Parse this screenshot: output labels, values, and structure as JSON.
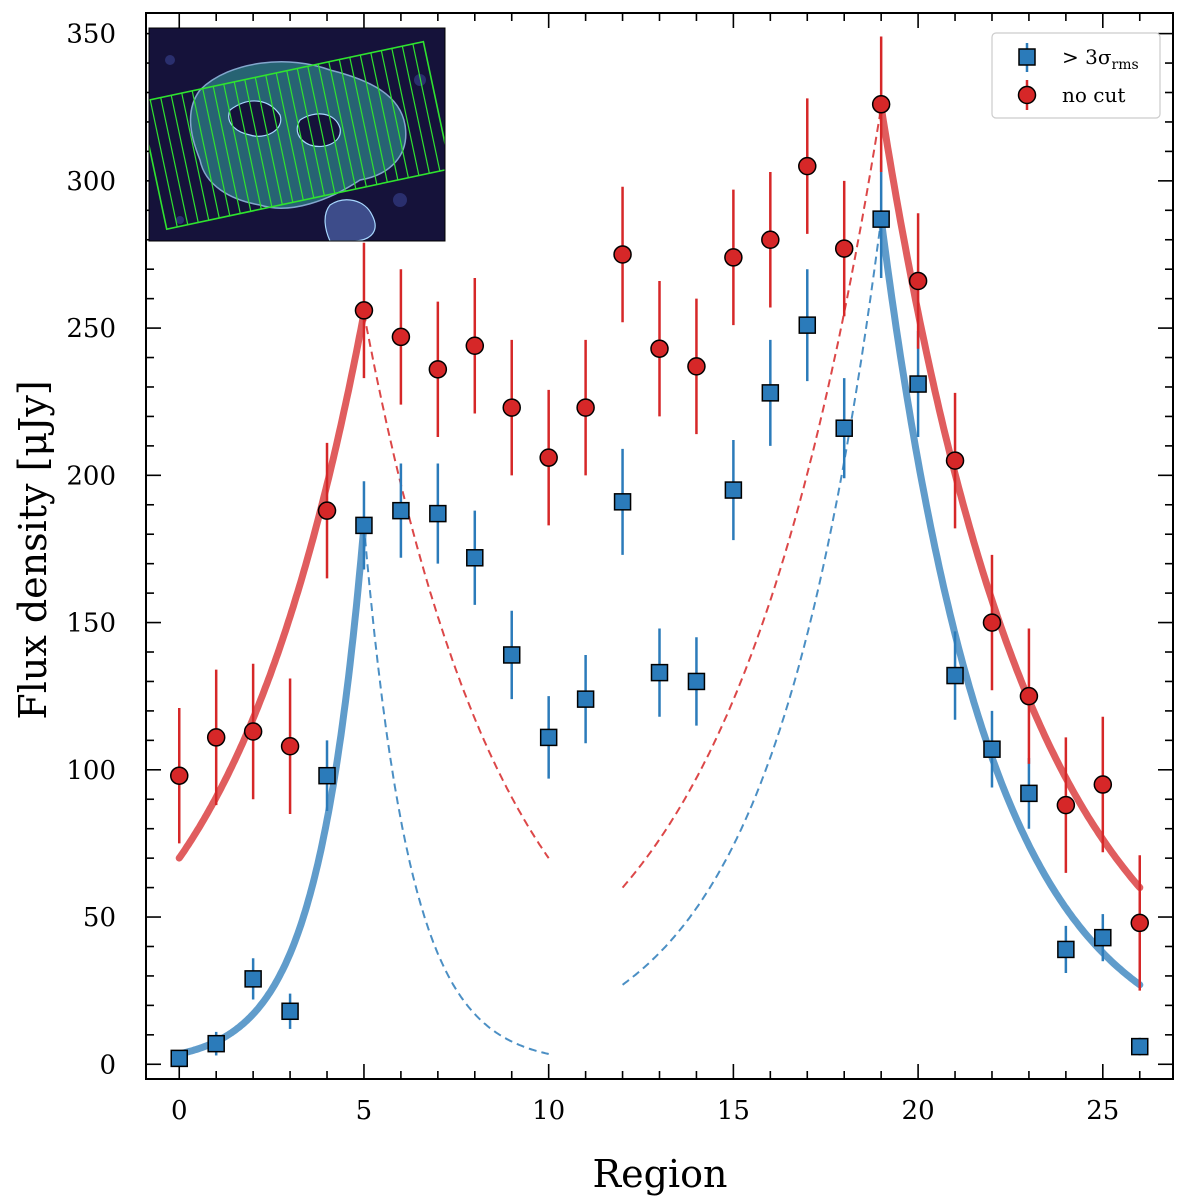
{
  "chart_data": {
    "type": "scatter",
    "title": "",
    "xlabel": "Region",
    "ylabel": "Flux density [μJy]",
    "xlim": [
      -0.9,
      26.9
    ],
    "ylim": [
      -5,
      357
    ],
    "xticks": [
      0,
      5,
      10,
      15,
      20,
      25
    ],
    "yticks": [
      0,
      50,
      100,
      150,
      200,
      250,
      300,
      350
    ],
    "x_tick_labels": [
      "0",
      "5",
      "10",
      "15",
      "20",
      "25"
    ],
    "y_tick_labels": [
      "0",
      "50",
      "100",
      "150",
      "200",
      "250",
      "300",
      "350"
    ],
    "legend_position": "top-right",
    "series": [
      {
        "name": "> 3σrms",
        "legend_label": "> 3σ",
        "legend_sub": "rms",
        "marker": "square",
        "color": "#2b7bba",
        "x": [
          0,
          1,
          2,
          3,
          4,
          5,
          6,
          7,
          8,
          9,
          10,
          11,
          12,
          13,
          14,
          15,
          16,
          17,
          18,
          19,
          20,
          21,
          22,
          23,
          24,
          25,
          26
        ],
        "y": [
          2,
          7,
          29,
          18,
          98,
          183,
          188,
          187,
          172,
          139,
          111,
          124,
          191,
          133,
          130,
          195,
          228,
          251,
          216,
          287,
          231,
          132,
          107,
          92,
          39,
          43,
          6
        ],
        "err": [
          2,
          4,
          7,
          6,
          12,
          15,
          16,
          17,
          16,
          15,
          14,
          15,
          18,
          15,
          15,
          17,
          18,
          19,
          17,
          20,
          18,
          15,
          13,
          12,
          8,
          8,
          3
        ]
      },
      {
        "name": "no cut",
        "legend_label": "no cut",
        "marker": "circle",
        "color": "#d62728",
        "x": [
          0,
          1,
          2,
          3,
          4,
          5,
          6,
          7,
          8,
          9,
          10,
          11,
          12,
          13,
          14,
          15,
          16,
          17,
          18,
          19,
          20,
          21,
          22,
          23,
          24,
          25,
          26
        ],
        "y": [
          98,
          111,
          113,
          108,
          188,
          256,
          247,
          236,
          244,
          223,
          206,
          223,
          275,
          243,
          237,
          274,
          280,
          305,
          277,
          326,
          266,
          205,
          150,
          125,
          88,
          95,
          48
        ],
        "err": [
          23,
          23,
          23,
          23,
          23,
          23,
          23,
          23,
          23,
          23,
          23,
          23,
          23,
          23,
          23,
          23,
          23,
          23,
          23,
          23,
          23,
          23,
          23,
          23,
          23,
          23,
          23
        ]
      }
    ],
    "fits": [
      {
        "series": "no cut",
        "peak_x": 5,
        "peak_y": 255,
        "rise_start_x": 0,
        "rise_start_y": 70,
        "fall_end_x": 10,
        "fall_end_y": 70,
        "color": "#d62728"
      },
      {
        "series": "> 3σrms",
        "peak_x": 5,
        "peak_y": 183,
        "rise_start_x": 0,
        "rise_start_y": 3.5,
        "fall_end_x": 10,
        "fall_end_y": 3.5,
        "color": "#2b7bba"
      },
      {
        "series": "no cut",
        "peak_x": 19,
        "peak_y": 325,
        "rise_start_x": 12,
        "rise_start_y": 60,
        "fall_end_x": 26,
        "fall_end_y": 60,
        "color": "#d62728"
      },
      {
        "series": "> 3σrms",
        "peak_x": 19,
        "peak_y": 287,
        "rise_start_x": 12,
        "rise_start_y": 27,
        "fall_end_x": 26,
        "fall_end_y": 27,
        "color": "#2b7bba"
      }
    ]
  }
}
